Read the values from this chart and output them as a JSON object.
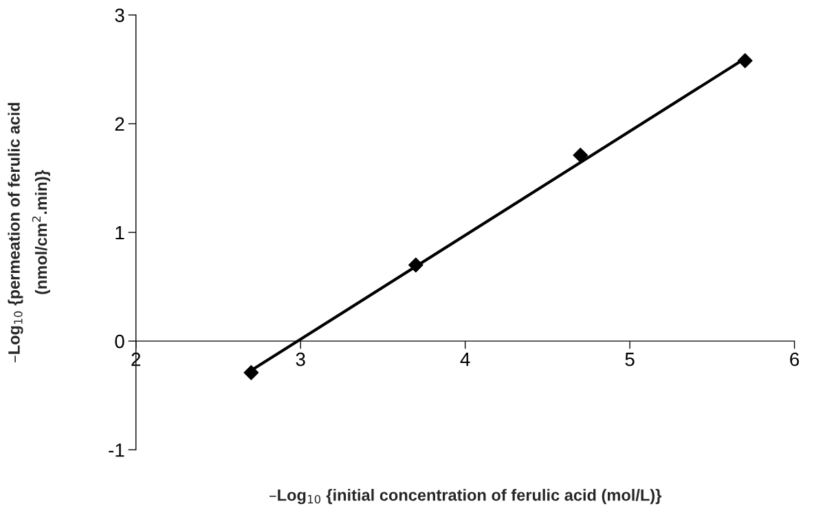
{
  "chart_data": {
    "type": "scatter",
    "xlabel": "–Log$_{10}$ {initial concentration of ferulic acid (mol/L)}",
    "ylabel": "–Log$_{10}$ {permeation of ferulic acid\n(nmol/cm$^{2}$.min)}",
    "x": [
      2.7,
      3.7,
      4.7,
      5.7
    ],
    "series": [
      {
        "color": "#000000",
        "marker": "diamond",
        "values": [
          -0.29,
          0.7,
          1.71,
          2.58
        ]
      },
      {
        "type": "line",
        "color": "#000000",
        "marker": "none",
        "line_style": "solid",
        "x": [
          2.7,
          5.7
        ],
        "values": [
          -0.27,
          2.6
        ]
      }
    ],
    "xlim": [
      2,
      6
    ],
    "ylim": [
      -1,
      3
    ],
    "xticks": [
      2,
      3,
      4,
      5,
      6
    ],
    "yticks": [
      -1,
      0,
      1,
      2,
      3
    ],
    "grid": false,
    "legend": false
  }
}
